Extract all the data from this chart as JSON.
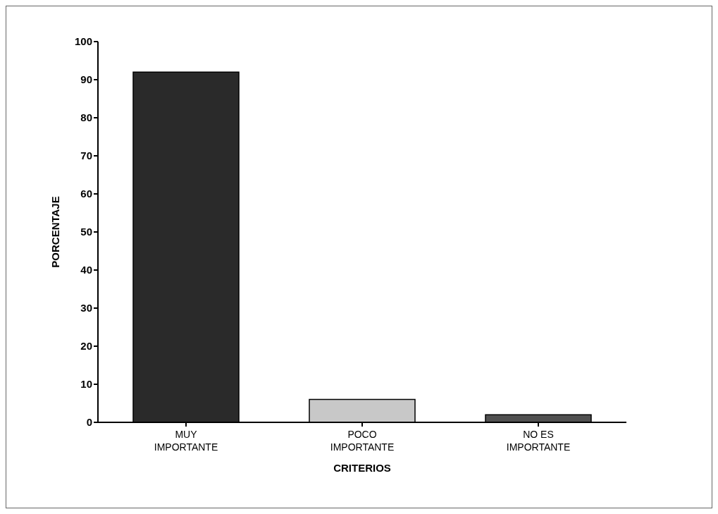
{
  "chart_data": {
    "type": "bar",
    "xlabel": "CRITERIOS",
    "ylabel": "PORCENTAJE",
    "categories": [
      "MUY IMPORTANTE",
      "POCO IMPORTANTE",
      "NO ES IMPORTANTE"
    ],
    "values": [
      92,
      6,
      2
    ],
    "colors": [
      "#2a2a2a",
      "#c8c8c8",
      "#505050"
    ],
    "ylim": [
      0,
      100
    ],
    "yticks": [
      0,
      10,
      20,
      30,
      40,
      50,
      60,
      70,
      80,
      90,
      100
    ],
    "grid": false
  }
}
